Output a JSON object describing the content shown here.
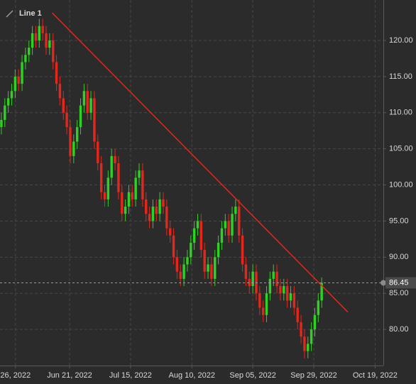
{
  "chart_data": {
    "type": "candlestick",
    "x": [
      0,
      1,
      2,
      3,
      4,
      5,
      6,
      7,
      8,
      9,
      10,
      11,
      12,
      13,
      14,
      15,
      16,
      17,
      18,
      19,
      20,
      21,
      22,
      23,
      24,
      25,
      26,
      27,
      28,
      29,
      30,
      31,
      32,
      33,
      34,
      35,
      36,
      37,
      38,
      39,
      40,
      41,
      42,
      43,
      44,
      45,
      46,
      47,
      48,
      49,
      50,
      51,
      52,
      53,
      54,
      55,
      56,
      57,
      58,
      59,
      60,
      61,
      62,
      63,
      64,
      65,
      66,
      67,
      68,
      69,
      70,
      71,
      72,
      73,
      74,
      75,
      76,
      77,
      78,
      79,
      80,
      81,
      82,
      83,
      84,
      85,
      86,
      87,
      88,
      89,
      90,
      91,
      92,
      93
    ],
    "open": [
      108,
      109,
      111,
      112,
      113,
      115,
      114,
      117,
      118,
      119,
      121,
      120,
      122,
      121,
      119,
      120,
      117,
      114,
      112,
      110,
      108,
      104,
      106,
      108,
      111,
      113,
      110,
      112,
      106,
      103,
      99,
      98,
      101,
      104,
      103,
      99,
      96,
      97,
      99,
      98,
      101,
      102,
      98,
      96,
      95,
      97,
      96,
      98,
      97,
      94,
      93,
      90,
      88,
      87,
      89,
      90,
      92,
      94,
      95,
      91,
      88,
      89,
      87,
      90,
      92,
      94,
      95,
      93,
      96,
      97,
      93,
      89,
      87,
      86,
      88,
      85,
      83,
      82,
      85,
      87,
      88,
      86,
      85,
      86,
      84,
      85,
      83,
      81,
      79,
      77,
      78,
      80,
      82,
      84
    ],
    "high": [
      110,
      112,
      113,
      114,
      116,
      116,
      118,
      119,
      120,
      122,
      122,
      123,
      123,
      122,
      121,
      121,
      118,
      115,
      113,
      111,
      109,
      107,
      109,
      112,
      114,
      114,
      113,
      113,
      107,
      104,
      100,
      102,
      105,
      105,
      104,
      100,
      98,
      100,
      100,
      102,
      103,
      103,
      99,
      97,
      98,
      98,
      99,
      99,
      98,
      95,
      94,
      91,
      89,
      90,
      91,
      93,
      95,
      96,
      96,
      92,
      90,
      90,
      91,
      93,
      95,
      96,
      96,
      97,
      98,
      98,
      94,
      90,
      88,
      89,
      89,
      86,
      84,
      86,
      88,
      89,
      89,
      87,
      87,
      87,
      86,
      86,
      84,
      82,
      80,
      79,
      81,
      83,
      85,
      87.2
    ],
    "low": [
      107,
      108,
      110,
      111,
      112,
      113,
      113,
      116,
      117,
      118,
      119,
      119,
      120,
      118,
      118,
      116,
      113,
      111,
      109,
      107,
      103,
      103,
      105,
      107,
      110,
      109,
      109,
      105,
      102,
      98,
      97,
      97,
      100,
      102,
      98,
      95,
      95,
      96,
      97,
      97,
      100,
      97,
      95,
      94,
      94,
      95,
      95,
      96,
      93,
      92,
      89,
      87,
      86,
      86,
      88,
      89,
      91,
      93,
      90,
      87,
      87,
      86,
      86,
      89,
      91,
      93,
      92,
      92,
      95,
      92,
      88,
      86,
      85,
      85,
      84,
      82,
      81,
      81,
      84,
      86,
      85,
      84,
      84,
      83,
      83,
      82,
      80,
      78,
      76,
      76,
      77,
      79,
      81,
      83
    ],
    "close": [
      109,
      111,
      112,
      113,
      115,
      114,
      117,
      118,
      119,
      121,
      120,
      122,
      121,
      119,
      120,
      117,
      114,
      112,
      110,
      108,
      104,
      106,
      108,
      111,
      113,
      110,
      112,
      106,
      103,
      99,
      98,
      101,
      104,
      103,
      99,
      96,
      97,
      99,
      98,
      101,
      102,
      98,
      96,
      95,
      97,
      96,
      98,
      97,
      94,
      93,
      90,
      88,
      87,
      89,
      90,
      92,
      94,
      95,
      91,
      88,
      89,
      87,
      90,
      92,
      94,
      95,
      93,
      96,
      97,
      93,
      89,
      87,
      86,
      88,
      85,
      83,
      82,
      85,
      87,
      88,
      86,
      85,
      86,
      84,
      85,
      83,
      81,
      79,
      77,
      78,
      80,
      82,
      84,
      86.45
    ],
    "up_color": "#31d024",
    "down_color": "#e3271c",
    "trendline": {
      "name": "Line 1",
      "color": "#e0281e",
      "x": [
        14.8,
        100.6
      ],
      "values": [
        123.8,
        82.4
      ]
    },
    "last_price": 86.45,
    "xlim": [
      -0.4,
      110.9
    ],
    "ylim": [
      75,
      125.6
    ],
    "xticks": [
      {
        "value": 4.1,
        "label": "26, 2022"
      },
      {
        "value": 19.8,
        "label": "Jun 21, 2022"
      },
      {
        "value": 37.5,
        "label": "Jul 15, 2022"
      },
      {
        "value": 55.3,
        "label": "Aug 10, 2022"
      },
      {
        "value": 73.0,
        "label": "Sep 05, 2022"
      },
      {
        "value": 90.7,
        "label": "Sep 29, 2022"
      },
      {
        "value": 108.5,
        "label": "Oct 19, 2022"
      }
    ],
    "yticks": [
      {
        "value": 80,
        "label": "80.00"
      },
      {
        "value": 85,
        "label": "85.00"
      },
      {
        "value": 90,
        "label": "90.00"
      },
      {
        "value": 95,
        "label": "95.00"
      },
      {
        "value": 100,
        "label": "100.00"
      },
      {
        "value": 105,
        "label": "105.00"
      },
      {
        "value": 110,
        "label": "110.00"
      },
      {
        "value": 115,
        "label": "115.00"
      },
      {
        "value": 120,
        "label": "120.00"
      }
    ],
    "grid": true
  }
}
